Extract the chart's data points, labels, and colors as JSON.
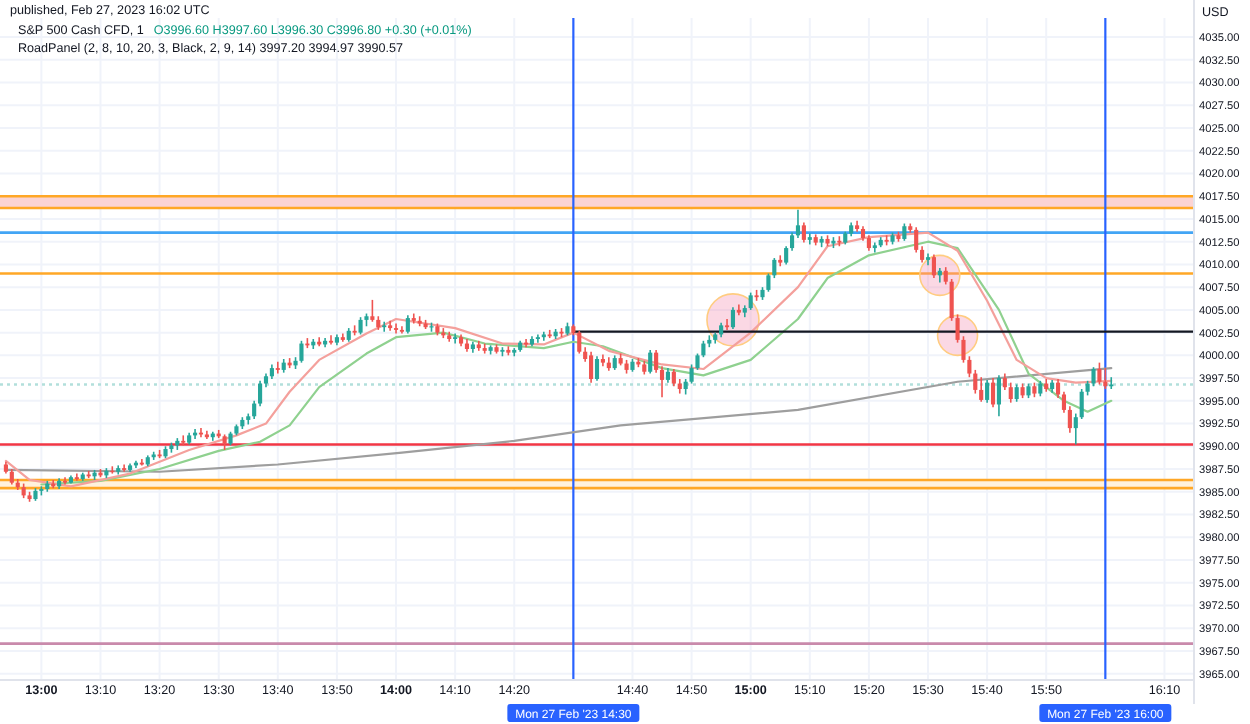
{
  "chart_data": {
    "type": "candlestick",
    "title": "S&P 500 Cash CFD, 1",
    "subtitle": "O3996.60 H3997.60 L3996.30 C3996.80 +0.30 (+0.01%)",
    "ylabel": "USD",
    "annotations": [
      "published, Feb 27, 2023 16:02 UTC",
      "RoadPanel (2, 8, 10, 20, 3, Black, 2, 9, 14)  3997.20  3994.97  3990.57"
    ],
    "colors": [
      "#ef5350",
      "#ef5350",
      "#ef5350",
      "#ef5350",
      "#ef5350",
      "#26a69a",
      "#26a69a",
      "#26a69a",
      "#ef5350",
      "#26a69a",
      "#ef5350",
      "#26a69a",
      "#ef5350",
      "#26a69a",
      "#ef5350",
      "#26a69a",
      "#ef5350",
      "#26a69a",
      "#ef5350",
      "#26a69a",
      "#ef5350",
      "#26a69a",
      "#26a69a",
      "#ef5350",
      "#26a69a",
      "#26a69a",
      "#ef5350",
      "#26a69a",
      "#26a69a",
      "#26a69a",
      "#ef5350",
      "#26a69a",
      "#26a69a",
      "#ef5350",
      "#ef5350",
      "#26a69a",
      "#ef5350",
      "#ef5350",
      "#26a69a",
      "#26a69a",
      "#26a69a",
      "#26a69a",
      "#26a69a",
      "#26a69a",
      "#26a69a",
      "#26a69a",
      "#ef5350",
      "#26a69a",
      "#ef5350",
      "#26a69a",
      "#26a69a",
      "#ef5350",
      "#26a69a",
      "#ef5350",
      "#26a69a",
      "#ef5350",
      "#26a69a",
      "#ef5350",
      "#26a69a",
      "#ef5350",
      "#26a69a",
      "#26a69a",
      "#ef5350",
      "#ef5350",
      "#26a69a",
      "#ef5350",
      "#ef5350",
      "#ef5350",
      "#26a69a",
      "#ef5350",
      "#ef5350",
      "#ef5350",
      "#26a69a",
      "#ef5350",
      "#ef5350",
      "#ef5350",
      "#26a69a",
      "#ef5350",
      "#ef5350",
      "#26a69a",
      "#ef5350",
      "#ef5350",
      "#26a69a",
      "#ef5350",
      "#26a69a",
      "#ef5350",
      "#26a69a",
      "#26a69a",
      "#ef5350",
      "#26a69a",
      "#26a69a",
      "#26a69a",
      "#ef5350",
      "#26a69a",
      "#ef5350",
      "#26a69a",
      "#ef5350",
      "#ef5350",
      "#ef5350",
      "#ef5350",
      "#26a69a",
      "#ef5350",
      "#ef5350",
      "#26a69a",
      "#ef5350",
      "#ef5350",
      "#26a69a",
      "#ef5350",
      "#ef5350",
      "#26a69a",
      "#ef5350",
      "#ef5350",
      "#26a69a",
      "#ef5350",
      "#ef5350",
      "#26a69a",
      "#26a69a",
      "#26a69a",
      "#26a69a",
      "#26a69a",
      "#26a69a",
      "#26a69a",
      "#ef5350",
      "#26a69a",
      "#ef5350",
      "#26a69a",
      "#26a69a",
      "#ef5350",
      "#26a69a",
      "#26a69a",
      "#26a69a",
      "#ef5350",
      "#26a69a",
      "#26a69a",
      "#26a69a",
      "#ef5350",
      "#26a69a",
      "#ef5350",
      "#26a69a",
      "#ef5350",
      "#26a69a",
      "#ef5350",
      "#26a69a",
      "#26a69a",
      "#ef5350",
      "#ef5350",
      "#ef5350",
      "#26a69a",
      "#26a69a",
      "#ef5350",
      "#26a69a",
      "#ef5350",
      "#26a69a",
      "#ef5350",
      "#ef5350",
      "#ef5350",
      "#26a69a",
      "#ef5350",
      "#26a69a",
      "#ef5350",
      "#ef5350",
      "#ef5350",
      "#ef5350",
      "#ef5350",
      "#ef5350",
      "#ef5350",
      "#26a69a",
      "#ef5350",
      "#26a69a",
      "#ef5350",
      "#ef5350",
      "#26a69a",
      "#ef5350",
      "#26a69a",
      "#ef5350",
      "#26a69a",
      "#ef5350",
      "#26a69a",
      "#ef5350",
      "#ef5350",
      "#ef5350",
      "#26a69a",
      "#26a69a",
      "#26a69a",
      "#26a69a",
      "#ef5350",
      "#ef5350",
      "#26a69a"
    ],
    "x": [
      "2023-02-27T12:54",
      "2023-02-27T12:55",
      "2023-02-27T12:56",
      "2023-02-27T12:57",
      "2023-02-27T12:58",
      "2023-02-27T12:59",
      "2023-02-27T13:00",
      "2023-02-27T13:01",
      "2023-02-27T13:02",
      "2023-02-27T13:03",
      "2023-02-27T13:04",
      "2023-02-27T13:05",
      "2023-02-27T13:06",
      "2023-02-27T13:07",
      "2023-02-27T13:08",
      "2023-02-27T13:09",
      "2023-02-27T13:10",
      "2023-02-27T13:11",
      "2023-02-27T13:12",
      "2023-02-27T13:13",
      "2023-02-27T13:14",
      "2023-02-27T13:15",
      "2023-02-27T13:16",
      "2023-02-27T13:17",
      "2023-02-27T13:18",
      "2023-02-27T13:19",
      "2023-02-27T13:20",
      "2023-02-27T13:21",
      "2023-02-27T13:22",
      "2023-02-27T13:23",
      "2023-02-27T13:24",
      "2023-02-27T13:25",
      "2023-02-27T13:26",
      "2023-02-27T13:27",
      "2023-02-27T13:28",
      "2023-02-27T13:29",
      "2023-02-27T13:30",
      "2023-02-27T13:31",
      "2023-02-27T13:32",
      "2023-02-27T13:33",
      "2023-02-27T13:34",
      "2023-02-27T13:35",
      "2023-02-27T13:36",
      "2023-02-27T13:37",
      "2023-02-27T13:38",
      "2023-02-27T13:39",
      "2023-02-27T13:40",
      "2023-02-27T13:41",
      "2023-02-27T13:42",
      "2023-02-27T13:43",
      "2023-02-27T13:44",
      "2023-02-27T13:45",
      "2023-02-27T13:46",
      "2023-02-27T13:47",
      "2023-02-27T13:48",
      "2023-02-27T13:49",
      "2023-02-27T13:50",
      "2023-02-27T13:51",
      "2023-02-27T13:52",
      "2023-02-27T13:53",
      "2023-02-27T13:54",
      "2023-02-27T13:55",
      "2023-02-27T13:56",
      "2023-02-27T13:57",
      "2023-02-27T13:58",
      "2023-02-27T13:59",
      "2023-02-27T14:00",
      "2023-02-27T14:01",
      "2023-02-27T14:02",
      "2023-02-27T14:03",
      "2023-02-27T14:04",
      "2023-02-27T14:05",
      "2023-02-27T14:06",
      "2023-02-27T14:07",
      "2023-02-27T14:08",
      "2023-02-27T14:09",
      "2023-02-27T14:10",
      "2023-02-27T14:11",
      "2023-02-27T14:12",
      "2023-02-27T14:13",
      "2023-02-27T14:14",
      "2023-02-27T14:15",
      "2023-02-27T14:16",
      "2023-02-27T14:17",
      "2023-02-27T14:18",
      "2023-02-27T14:19",
      "2023-02-27T14:20",
      "2023-02-27T14:21",
      "2023-02-27T14:22",
      "2023-02-27T14:23",
      "2023-02-27T14:24",
      "2023-02-27T14:25",
      "2023-02-27T14:26",
      "2023-02-27T14:27",
      "2023-02-27T14:28",
      "2023-02-27T14:29",
      "2023-02-27T14:30",
      "2023-02-27T14:31",
      "2023-02-27T14:32",
      "2023-02-27T14:33",
      "2023-02-27T14:34",
      "2023-02-27T14:35",
      "2023-02-27T14:36",
      "2023-02-27T14:37",
      "2023-02-27T14:38",
      "2023-02-27T14:39",
      "2023-02-27T14:40",
      "2023-02-27T14:41",
      "2023-02-27T14:42",
      "2023-02-27T14:43",
      "2023-02-27T14:44",
      "2023-02-27T14:45",
      "2023-02-27T14:46",
      "2023-02-27T14:47",
      "2023-02-27T14:48",
      "2023-02-27T14:49",
      "2023-02-27T14:50",
      "2023-02-27T14:51",
      "2023-02-27T14:52",
      "2023-02-27T14:53",
      "2023-02-27T14:54",
      "2023-02-27T14:55",
      "2023-02-27T14:56",
      "2023-02-27T14:57",
      "2023-02-27T14:58",
      "2023-02-27T14:59",
      "2023-02-27T15:00",
      "2023-02-27T15:01",
      "2023-02-27T15:02",
      "2023-02-27T15:03",
      "2023-02-27T15:04",
      "2023-02-27T15:05",
      "2023-02-27T15:06",
      "2023-02-27T15:07",
      "2023-02-27T15:08",
      "2023-02-27T15:09",
      "2023-02-27T15:10",
      "2023-02-27T15:11",
      "2023-02-27T15:12",
      "2023-02-27T15:13",
      "2023-02-27T15:14",
      "2023-02-27T15:15",
      "2023-02-27T15:16",
      "2023-02-27T15:17",
      "2023-02-27T15:18",
      "2023-02-27T15:19",
      "2023-02-27T15:20",
      "2023-02-27T15:21",
      "2023-02-27T15:22",
      "2023-02-27T15:23",
      "2023-02-27T15:24",
      "2023-02-27T15:25",
      "2023-02-27T15:26",
      "2023-02-27T15:27",
      "2023-02-27T15:28",
      "2023-02-27T15:29",
      "2023-02-27T15:30",
      "2023-02-27T15:31",
      "2023-02-27T15:32",
      "2023-02-27T15:33",
      "2023-02-27T15:34",
      "2023-02-27T15:35",
      "2023-02-27T15:36",
      "2023-02-27T15:37",
      "2023-02-27T15:38",
      "2023-02-27T15:39",
      "2023-02-27T15:40",
      "2023-02-27T15:41",
      "2023-02-27T15:42",
      "2023-02-27T15:43",
      "2023-02-27T15:44",
      "2023-02-27T15:45",
      "2023-02-27T15:46",
      "2023-02-27T15:47",
      "2023-02-27T15:48",
      "2023-02-27T15:49",
      "2023-02-27T15:50",
      "2023-02-27T15:51",
      "2023-02-27T15:52",
      "2023-02-27T15:53",
      "2023-02-27T15:54",
      "2023-02-27T15:55",
      "2023-02-27T15:56",
      "2023-02-27T15:57",
      "2023-02-27T15:58",
      "2023-02-27T15:59",
      "2023-02-27T16:00",
      "2023-02-27T16:01"
    ],
    "ohlc": [
      [
        3988.0,
        3988.3,
        3987.0,
        3987.2
      ],
      [
        3987.2,
        3987.5,
        3985.8,
        3986.0
      ],
      [
        3986.0,
        3986.4,
        3985.2,
        3985.5
      ],
      [
        3985.5,
        3985.9,
        3984.3,
        3984.6
      ],
      [
        3984.6,
        3985.0,
        3983.9,
        3984.2
      ],
      [
        3984.2,
        3985.4,
        3984.0,
        3985.1
      ],
      [
        3985.1,
        3985.6,
        3984.6,
        3985.3
      ],
      [
        3985.3,
        3986.2,
        3985.0,
        3985.9
      ],
      [
        3985.9,
        3986.3,
        3985.4,
        3985.6
      ],
      [
        3985.6,
        3986.5,
        3985.3,
        3986.2
      ],
      [
        3986.2,
        3986.6,
        3985.8,
        3986.0
      ],
      [
        3986.0,
        3986.8,
        3985.9,
        3986.6
      ],
      [
        3986.6,
        3987.0,
        3986.2,
        3986.4
      ],
      [
        3986.4,
        3987.1,
        3986.2,
        3986.9
      ],
      [
        3986.9,
        3987.3,
        3986.5,
        3986.7
      ],
      [
        3986.7,
        3987.4,
        3986.3,
        3987.1
      ],
      [
        3987.1,
        3987.5,
        3986.6,
        3986.8
      ],
      [
        3986.8,
        3987.6,
        3986.5,
        3987.3
      ],
      [
        3987.3,
        3987.8,
        3987.0,
        3987.2
      ],
      [
        3987.2,
        3987.9,
        3986.9,
        3987.6
      ],
      [
        3987.6,
        3988.0,
        3987.2,
        3987.4
      ],
      [
        3987.4,
        3988.1,
        3987.2,
        3987.9
      ],
      [
        3987.9,
        3988.4,
        3987.6,
        3988.2
      ],
      [
        3988.2,
        3988.6,
        3987.9,
        3988.0
      ],
      [
        3988.0,
        3989.0,
        3987.8,
        3988.8
      ],
      [
        3988.8,
        3989.4,
        3988.5,
        3989.1
      ],
      [
        3989.1,
        3989.6,
        3988.7,
        3988.9
      ],
      [
        3988.9,
        3990.0,
        3988.7,
        3989.7
      ],
      [
        3989.7,
        3990.4,
        3989.3,
        3990.1
      ],
      [
        3990.1,
        3990.9,
        3989.6,
        3990.6
      ],
      [
        3990.6,
        3991.2,
        3990.1,
        3990.4
      ],
      [
        3990.4,
        3991.5,
        3990.2,
        3991.2
      ],
      [
        3991.2,
        3991.9,
        3990.8,
        3991.5
      ],
      [
        3991.5,
        3992.0,
        3991.0,
        3991.3
      ],
      [
        3991.3,
        3991.7,
        3990.8,
        3991.0
      ],
      [
        3991.0,
        3991.6,
        3990.6,
        3991.4
      ],
      [
        3991.4,
        3991.8,
        3990.9,
        3991.1
      ],
      [
        3991.1,
        3991.3,
        3989.6,
        3990.3
      ],
      [
        3990.3,
        3991.6,
        3990.1,
        3991.4
      ],
      [
        3991.4,
        3992.4,
        3991.2,
        3992.2
      ],
      [
        3992.2,
        3993.2,
        3991.9,
        3992.9
      ],
      [
        3992.9,
        3993.6,
        3992.4,
        3993.3
      ],
      [
        3993.3,
        3995.0,
        3993.0,
        3994.7
      ],
      [
        3994.7,
        3997.2,
        3994.4,
        3996.9
      ],
      [
        3996.9,
        3998.0,
        3996.5,
        3997.7
      ],
      [
        3997.7,
        3999.0,
        3997.4,
        3998.6
      ],
      [
        3998.6,
        3999.3,
        3998.0,
        3998.4
      ],
      [
        3998.4,
        3999.6,
        3998.1,
        3999.2
      ],
      [
        3999.2,
        3999.7,
        3998.6,
        3998.9
      ],
      [
        3998.9,
        3999.8,
        3998.5,
        3999.4
      ],
      [
        3999.4,
        4001.6,
        3999.2,
        4001.3
      ],
      [
        4001.3,
        4001.9,
        4000.8,
        4001.1
      ],
      [
        4001.1,
        4001.8,
        4000.7,
        4001.5
      ],
      [
        4001.5,
        4002.0,
        4001.0,
        4001.2
      ],
      [
        4001.2,
        4001.9,
        4000.9,
        4001.6
      ],
      [
        4001.6,
        4002.2,
        4001.2,
        4001.4
      ],
      [
        4001.4,
        4002.3,
        4001.1,
        4002.0
      ],
      [
        4002.0,
        4002.4,
        4001.5,
        4001.7
      ],
      [
        4001.7,
        4003.0,
        4001.5,
        4002.7
      ],
      [
        4002.7,
        4003.3,
        4002.2,
        4002.5
      ],
      [
        4002.5,
        4004.2,
        4002.3,
        4003.9
      ],
      [
        4003.9,
        4004.6,
        4003.2,
        4004.3
      ],
      [
        4004.3,
        4006.1,
        4003.7,
        4003.9
      ],
      [
        4003.9,
        4004.3,
        4002.8,
        4003.1
      ],
      [
        4003.1,
        4003.7,
        4002.6,
        4003.3
      ],
      [
        4003.3,
        4003.8,
        4002.7,
        4003.0
      ],
      [
        4003.0,
        4003.5,
        4002.4,
        4002.8
      ],
      [
        4002.8,
        4003.2,
        4002.4,
        4002.6
      ],
      [
        4002.6,
        4004.4,
        4002.4,
        4004.1
      ],
      [
        4004.1,
        4004.6,
        4003.5,
        4003.8
      ],
      [
        4003.8,
        4004.3,
        4003.2,
        4003.5
      ],
      [
        4003.5,
        4003.9,
        4002.9,
        4003.1
      ],
      [
        4003.1,
        4003.6,
        4002.6,
        4003.2
      ],
      [
        4003.2,
        4003.5,
        4002.2,
        4002.5
      ],
      [
        4002.5,
        4003.0,
        4001.9,
        4002.2
      ],
      [
        4002.2,
        4002.6,
        4001.5,
        4001.8
      ],
      [
        4001.8,
        4002.4,
        4001.3,
        4002.0
      ],
      [
        4002.0,
        4002.3,
        4001.0,
        4001.3
      ],
      [
        4001.3,
        4001.8,
        4000.4,
        4000.7
      ],
      [
        4000.7,
        4001.5,
        4000.3,
        4001.2
      ],
      [
        4001.2,
        4001.6,
        4000.5,
        4000.8
      ],
      [
        4000.8,
        4001.3,
        4000.2,
        4000.5
      ],
      [
        4000.5,
        4001.1,
        4000.1,
        4000.9
      ],
      [
        4000.9,
        4001.2,
        4000.2,
        4000.4
      ],
      [
        4000.4,
        4000.9,
        3999.9,
        4000.6
      ],
      [
        4000.6,
        4001.0,
        4000.0,
        4000.3
      ],
      [
        4000.3,
        4000.8,
        3999.9,
        4000.6
      ],
      [
        4000.6,
        4001.6,
        4000.4,
        4001.4
      ],
      [
        4001.4,
        4001.8,
        4000.9,
        4001.2
      ],
      [
        4001.2,
        4002.1,
        4001.0,
        4001.8
      ],
      [
        4001.8,
        4002.3,
        4001.4,
        4002.0
      ],
      [
        4002.0,
        4002.6,
        4001.6,
        4002.3
      ],
      [
        4002.3,
        4002.8,
        4001.9,
        4002.1
      ],
      [
        4002.1,
        4002.9,
        4001.8,
        4002.6
      ],
      [
        4002.6,
        4003.0,
        4002.0,
        4002.4
      ],
      [
        4002.4,
        4003.6,
        4002.2,
        4003.2
      ],
      [
        4003.2,
        4003.4,
        4002.2,
        4002.5
      ],
      [
        4002.5,
        4002.7,
        4000.2,
        4000.4
      ],
      [
        4000.4,
        4000.9,
        3999.3,
        3999.6
      ],
      [
        4000.0,
        4000.4,
        3997.0,
        3997.4
      ],
      [
        3997.4,
        3999.9,
        3997.2,
        3999.6
      ],
      [
        3999.6,
        4000.1,
        3998.8,
        3999.2
      ],
      [
        3999.2,
        3999.8,
        3998.3,
        3998.6
      ],
      [
        3998.6,
        4000.0,
        3998.4,
        3999.7
      ],
      [
        3999.7,
        4000.2,
        3998.9,
        3999.1
      ],
      [
        3999.1,
        3999.5,
        3998.0,
        3998.4
      ],
      [
        3998.4,
        3999.6,
        3998.2,
        3999.3
      ],
      [
        3999.3,
        3999.7,
        3998.7,
        3999.0
      ],
      [
        3999.0,
        3999.4,
        3997.9,
        3998.2
      ],
      [
        3998.2,
        4000.6,
        3998.0,
        4000.3
      ],
      [
        4000.3,
        4000.6,
        3998.1,
        3998.4
      ],
      [
        3998.4,
        3998.8,
        3995.4,
        3997.3
      ],
      [
        3997.3,
        3998.6,
        3997.0,
        3998.2
      ],
      [
        3998.2,
        3998.5,
        3996.6,
        3996.9
      ],
      [
        3996.9,
        3997.4,
        3995.8,
        3996.3
      ],
      [
        3996.3,
        3997.4,
        3995.7,
        3997.1
      ],
      [
        3997.1,
        3999.0,
        3996.9,
        3998.6
      ],
      [
        3998.6,
        4000.2,
        3998.4,
        4000.0
      ],
      [
        4000.0,
        4001.6,
        3999.8,
        4001.3
      ],
      [
        4001.3,
        4002.2,
        4000.9,
        4001.7
      ],
      [
        4001.7,
        4002.5,
        4001.3,
        4002.3
      ],
      [
        4002.3,
        4003.6,
        4002.0,
        4003.3
      ],
      [
        4003.3,
        4004.0,
        4002.8,
        4003.1
      ],
      [
        4003.1,
        4005.3,
        4002.9,
        4005.0
      ],
      [
        4005.0,
        4005.6,
        4004.4,
        4004.7
      ],
      [
        4004.7,
        4005.5,
        4004.2,
        4005.2
      ],
      [
        4005.2,
        4006.9,
        4005.0,
        4006.6
      ],
      [
        4006.6,
        4007.2,
        4006.0,
        4006.4
      ],
      [
        4006.4,
        4007.5,
        4006.1,
        4007.2
      ],
      [
        4007.2,
        4009.0,
        4007.0,
        4008.8
      ],
      [
        4008.8,
        4010.7,
        4008.5,
        4010.5
      ],
      [
        4010.5,
        4011.0,
        4009.8,
        4010.2
      ],
      [
        4010.2,
        4012.0,
        4010.0,
        4011.8
      ],
      [
        4011.8,
        4013.5,
        4011.5,
        4013.2
      ],
      [
        4013.2,
        4016.0,
        4012.9,
        4014.3
      ],
      [
        4014.3,
        4014.6,
        4012.4,
        4012.7
      ],
      [
        4012.7,
        4013.4,
        4012.2,
        4013.0
      ],
      [
        4013.0,
        4013.3,
        4012.1,
        4012.4
      ],
      [
        4012.4,
        4013.1,
        4011.9,
        4012.8
      ],
      [
        4012.8,
        4013.2,
        4012.0,
        4012.3
      ],
      [
        4012.3,
        4013.0,
        4011.8,
        4012.6
      ],
      [
        4012.6,
        4013.1,
        4012.0,
        4012.4
      ],
      [
        4012.4,
        4013.6,
        4012.2,
        4013.4
      ],
      [
        4013.4,
        4014.6,
        4013.1,
        4014.3
      ],
      [
        4014.3,
        4014.8,
        4013.6,
        4013.9
      ],
      [
        4013.9,
        4014.2,
        4012.6,
        4012.9
      ],
      [
        4012.9,
        4013.2,
        4011.5,
        4011.8
      ],
      [
        4011.8,
        4012.4,
        4011.3,
        4012.1
      ],
      [
        4012.1,
        4013.0,
        4011.9,
        4012.7
      ],
      [
        4012.7,
        4013.2,
        4012.1,
        4012.5
      ],
      [
        4012.5,
        4013.5,
        4012.2,
        4013.2
      ],
      [
        4013.2,
        4013.6,
        4012.5,
        4012.8
      ],
      [
        4012.8,
        4014.5,
        4012.6,
        4014.2
      ],
      [
        4014.2,
        4014.5,
        4013.5,
        4013.8
      ],
      [
        4013.8,
        4014.1,
        4011.3,
        4011.6
      ],
      [
        4011.6,
        4012.0,
        4010.2,
        4010.5
      ],
      [
        4010.5,
        4011.2,
        4009.9,
        4010.8
      ],
      [
        4010.8,
        4011.1,
        4008.5,
        4008.8
      ],
      [
        4008.8,
        4009.6,
        4008.0,
        4009.3
      ],
      [
        4009.3,
        4009.7,
        4007.8,
        4008.1
      ],
      [
        4008.1,
        4008.4,
        4003.8,
        4004.1
      ],
      [
        4004.1,
        4004.5,
        4001.4,
        4001.7
      ],
      [
        4001.7,
        4002.1,
        3999.2,
        3999.5
      ],
      [
        3999.5,
        3999.9,
        3997.6,
        3998.0
      ],
      [
        3998.0,
        3998.4,
        3995.8,
        3996.2
      ],
      [
        3996.2,
        3997.6,
        3994.9,
        3995.1
      ],
      [
        3995.1,
        3997.3,
        3994.8,
        3997.0
      ],
      [
        3997.0,
        3997.5,
        3994.3,
        3994.6
      ],
      [
        3994.6,
        3997.8,
        3993.3,
        3997.5
      ],
      [
        3997.5,
        3998.0,
        3996.2,
        3996.5
      ],
      [
        3996.5,
        3997.0,
        3994.8,
        3995.2
      ],
      [
        3995.2,
        3996.8,
        3994.9,
        3996.5
      ],
      [
        3996.5,
        3996.9,
        3995.3,
        3995.6
      ],
      [
        3995.6,
        3996.9,
        3995.3,
        3996.6
      ],
      [
        3996.6,
        3997.0,
        3995.4,
        3995.8
      ],
      [
        3995.8,
        3997.2,
        3995.5,
        3996.9
      ],
      [
        3996.9,
        3997.4,
        3996.0,
        3996.3
      ],
      [
        3996.3,
        3997.3,
        3995.9,
        3997.0
      ],
      [
        3997.0,
        3997.4,
        3995.3,
        3995.7
      ],
      [
        3995.7,
        3996.0,
        3993.7,
        3994.0
      ],
      [
        3994.0,
        3994.4,
        3991.5,
        3992.0
      ],
      [
        3992.0,
        3993.6,
        3990.2,
        3993.2
      ],
      [
        3993.2,
        3996.3,
        3993.0,
        3996.0
      ],
      [
        3996.0,
        3997.2,
        3995.6,
        3996.9
      ],
      [
        3996.9,
        3998.7,
        3996.6,
        3998.5
      ],
      [
        3998.5,
        3999.2,
        3996.8,
        3997.1
      ],
      [
        3997.1,
        3998.6,
        3996.3,
        3996.6
      ],
      [
        3996.6,
        3997.6,
        3996.3,
        3996.8
      ]
    ],
    "series": [
      {
        "type": "line",
        "color": "#9e9e9e",
        "x": [
          "2023-02-27T12:54",
          "2023-02-27T13:20",
          "2023-02-27T13:40",
          "2023-02-27T14:01",
          "2023-02-27T14:20",
          "2023-02-27T14:38",
          "2023-02-27T15:08",
          "2023-02-27T15:35",
          "2023-02-27T16:01"
        ],
        "values": [
          3987.4,
          3987.2,
          3988.0,
          3989.3,
          3990.6,
          3992.3,
          3994.0,
          3997.1,
          3998.6
        ]
      },
      {
        "type": "line",
        "color": "#8fd18f",
        "x": [
          "2023-02-27T13:00",
          "2023-02-27T13:10",
          "2023-02-27T13:20",
          "2023-02-27T13:30",
          "2023-02-27T13:37",
          "2023-02-27T13:42",
          "2023-02-27T13:47",
          "2023-02-27T13:55",
          "2023-02-27T14:00",
          "2023-02-27T14:08",
          "2023-02-27T14:15",
          "2023-02-27T14:25",
          "2023-02-27T14:30",
          "2023-02-27T14:35",
          "2023-02-27T14:45",
          "2023-02-27T14:52",
          "2023-02-27T15:00",
          "2023-02-27T15:08",
          "2023-02-27T15:13",
          "2023-02-27T15:20",
          "2023-02-27T15:30",
          "2023-02-27T15:35",
          "2023-02-27T15:42",
          "2023-02-27T15:47",
          "2023-02-27T15:53",
          "2023-02-27T15:57",
          "2023-02-27T16:01"
        ],
        "values": [
          3985.8,
          3986.2,
          3987.5,
          3989.5,
          3990.5,
          3992.3,
          3996.5,
          4000.2,
          4002.0,
          4002.5,
          4001.3,
          4000.8,
          4001.5,
          4001.0,
          3998.6,
          3997.8,
          3999.5,
          4004.0,
          4008.5,
          4011.0,
          4012.5,
          4011.8,
          4005.0,
          3998.0,
          3995.0,
          3993.8,
          3995.0
        ]
      },
      {
        "type": "line",
        "color": "#f4a09c",
        "x": [
          "2023-02-27T12:54",
          "2023-02-27T12:58",
          "2023-02-27T13:05",
          "2023-02-27T13:15",
          "2023-02-27T13:25",
          "2023-02-27T13:33",
          "2023-02-27T13:38",
          "2023-02-27T13:42",
          "2023-02-27T13:47",
          "2023-02-27T13:55",
          "2023-02-27T14:00",
          "2023-02-27T14:10",
          "2023-02-27T14:18",
          "2023-02-27T14:25",
          "2023-02-27T14:30",
          "2023-02-27T14:36",
          "2023-02-27T14:45",
          "2023-02-27T14:52",
          "2023-02-27T15:00",
          "2023-02-27T15:08",
          "2023-02-27T15:13",
          "2023-02-27T15:20",
          "2023-02-27T15:30",
          "2023-02-27T15:35",
          "2023-02-27T15:40",
          "2023-02-27T15:45",
          "2023-02-27T15:50",
          "2023-02-27T15:55",
          "2023-02-27T16:01"
        ],
        "values": [
          3988.4,
          3986.3,
          3985.6,
          3987.0,
          3989.6,
          3991.2,
          3992.5,
          3996.0,
          3999.5,
          4002.4,
          4004.0,
          4003.0,
          4001.3,
          4001.2,
          4002.5,
          4000.5,
          3999.0,
          3998.5,
          4002.5,
          4007.5,
          4012.0,
          4013.0,
          4013.5,
          4011.5,
          4006.0,
          3999.5,
          3997.5,
          3997.0,
          3997.2
        ]
      },
      {
        "type": "line",
        "color": "#131722",
        "x": [
          "2023-02-27T14:30",
          "2023-02-27T16:15"
        ],
        "values": [
          4002.6,
          4002.6
        ]
      }
    ],
    "xlim": [
      "2023-02-27T12:53",
      "2023-02-27T16:15"
    ],
    "xticks": [
      {
        "value": "2023-02-27T13:00",
        "label": "13:00"
      },
      {
        "value": "2023-02-27T13:10",
        "label": "13:10"
      },
      {
        "value": "2023-02-27T13:20",
        "label": "13:20"
      },
      {
        "value": "2023-02-27T13:30",
        "label": "13:30"
      },
      {
        "value": "2023-02-27T13:40",
        "label": "13:40"
      },
      {
        "value": "2023-02-27T13:50",
        "label": "13:50"
      },
      {
        "value": "2023-02-27T14:00",
        "label": "14:00"
      },
      {
        "value": "2023-02-27T14:10",
        "label": "14:10"
      },
      {
        "value": "2023-02-27T14:20",
        "label": "14:20"
      },
      {
        "value": "2023-02-27T14:40",
        "label": "14:40"
      },
      {
        "value": "2023-02-27T14:50",
        "label": "14:50"
      },
      {
        "value": "2023-02-27T15:00",
        "label": "15:00"
      },
      {
        "value": "2023-02-27T15:10",
        "label": "15:10"
      },
      {
        "value": "2023-02-27T15:20",
        "label": "15:20"
      },
      {
        "value": "2023-02-27T15:30",
        "label": "15:30"
      },
      {
        "value": "2023-02-27T15:40",
        "label": "15:40"
      },
      {
        "value": "2023-02-27T15:50",
        "label": "15:50"
      },
      {
        "value": "2023-02-27T16:10",
        "label": "16:10"
      }
    ],
    "ylim": [
      3964.3,
      4037.1
    ],
    "yticks": [
      {
        "value": 3965,
        "label": "3965.00"
      },
      {
        "value": 3967.5,
        "label": "3967.50"
      },
      {
        "value": 3970,
        "label": "3970.00"
      },
      {
        "value": 3972.5,
        "label": "3972.50"
      },
      {
        "value": 3975,
        "label": "3975.00"
      },
      {
        "value": 3977.5,
        "label": "3977.50"
      },
      {
        "value": 3980,
        "label": "3980.00"
      },
      {
        "value": 3982.5,
        "label": "3982.50"
      },
      {
        "value": 3985,
        "label": "3985.00"
      },
      {
        "value": 3987.5,
        "label": "3987.50"
      },
      {
        "value": 3990,
        "label": "3990.00"
      },
      {
        "value": 3992.5,
        "label": "3992.50"
      },
      {
        "value": 3995,
        "label": "3995.00"
      },
      {
        "value": 3997.5,
        "label": "3997.50"
      },
      {
        "value": 4000,
        "label": "4000.00"
      },
      {
        "value": 4002.5,
        "label": "4002.50"
      },
      {
        "value": 4005,
        "label": "4005.00"
      },
      {
        "value": 4007.5,
        "label": "4007.50"
      },
      {
        "value": 4010,
        "label": "4010.00"
      },
      {
        "value": 4012.5,
        "label": "4012.50"
      },
      {
        "value": 4015,
        "label": "4015.00"
      },
      {
        "value": 4017.5,
        "label": "4017.50"
      },
      {
        "value": 4020,
        "label": "4020.00"
      },
      {
        "value": 4022.5,
        "label": "4022.50"
      },
      {
        "value": 4025,
        "label": "4025.00"
      },
      {
        "value": 4027.5,
        "label": "4027.50"
      },
      {
        "value": 4030,
        "label": "4030.00"
      },
      {
        "value": 4032.5,
        "label": "4032.50"
      },
      {
        "value": 4035,
        "label": "4035.00"
      }
    ],
    "grid": true,
    "bands": [
      {
        "axis": "y",
        "from": 4016.2,
        "to": 4017.5,
        "color": "#fbd3d3"
      },
      {
        "axis": "y",
        "from": 3985.4,
        "to": 3986.3,
        "color": "#fff1dc"
      }
    ],
    "ref_lines": [
      {
        "axis": "y",
        "value": 4017.5,
        "color": "#ffa726"
      },
      {
        "axis": "y",
        "value": 4016.2,
        "color": "#ffa726"
      },
      {
        "axis": "y",
        "value": 4013.5,
        "color": "#42a5f5"
      },
      {
        "axis": "y",
        "value": 4009.0,
        "color": "#ffa726"
      },
      {
        "axis": "y",
        "value": 3996.8,
        "color": "#b2dfdb",
        "line_style": "dotted"
      },
      {
        "axis": "y",
        "value": 3990.2,
        "color": "#f23645"
      },
      {
        "axis": "y",
        "value": 3986.3,
        "color": "#ffa726"
      },
      {
        "axis": "y",
        "value": 3985.4,
        "color": "#ffa726"
      },
      {
        "axis": "y",
        "value": 3968.3,
        "color": "#c98aab"
      },
      {
        "axis": "x",
        "value": "2023-02-27T14:30",
        "label": "Mon 27 Feb '23  14:30",
        "color": "#2962ff"
      },
      {
        "axis": "x",
        "value": "2023-02-27T16:00",
        "label": "Mon 27 Feb '23  16:00",
        "color": "#2962ff"
      }
    ]
  }
}
